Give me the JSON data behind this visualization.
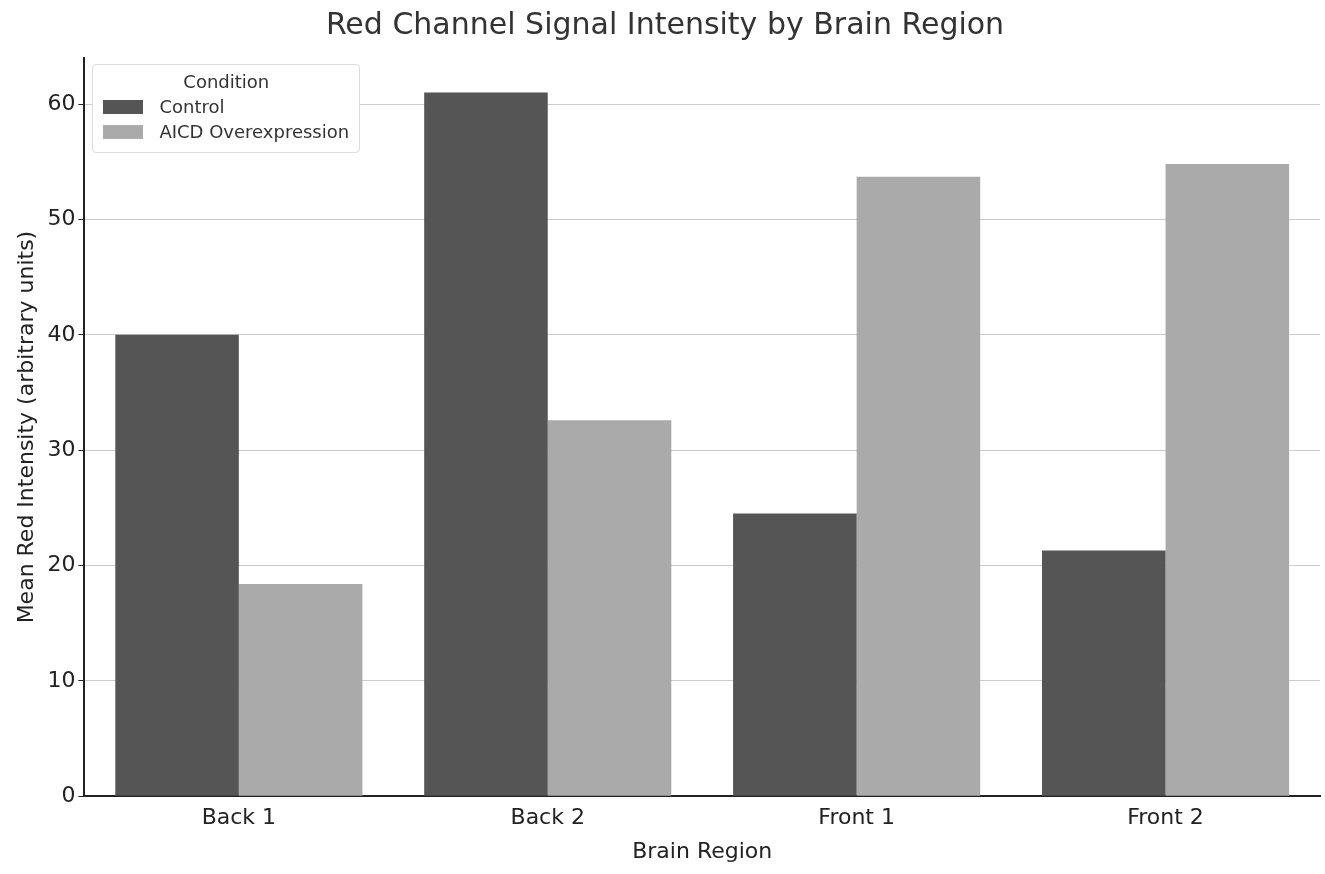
{
  "chart_data": {
    "type": "bar",
    "title": "Red Channel Signal Intensity by Brain Region",
    "xlabel": "Brain Region",
    "ylabel": "Mean Red Intensity (arbitrary units)",
    "legend_title": "Condition",
    "legend": "top left",
    "grid": "y",
    "categories": [
      "Back 1",
      "Back 2",
      "Front 1",
      "Front 2"
    ],
    "series": [
      {
        "name": "Control",
        "color": "#555555",
        "values": [
          40,
          61,
          24.5,
          21.3
        ]
      },
      {
        "name": "AICD Overexpression",
        "color": "#aaaaaa",
        "values": [
          18.4,
          32.6,
          53.7,
          54.8
        ]
      }
    ],
    "ylim": [
      0,
      64
    ],
    "yticks": [
      0,
      10,
      20,
      30,
      40,
      50,
      60
    ]
  }
}
